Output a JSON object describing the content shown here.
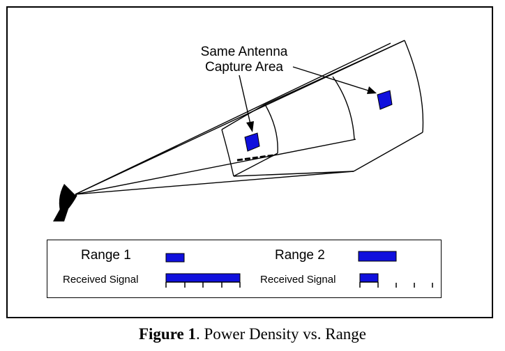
{
  "callout": {
    "line1": "Same Antenna",
    "line2": "Capture Area"
  },
  "legend": {
    "range1_label": "Range 1",
    "range2_label": "Range 2",
    "received_signal_1": "Received Signal",
    "received_signal_2": "Received Signal"
  },
  "caption": {
    "figure_label": "Figure 1",
    "text": ".  Power Density vs. Range"
  },
  "colors": {
    "capture_area": "#1010dd",
    "line": "#000000"
  },
  "icons": [
    "radar-antenna-icon"
  ]
}
